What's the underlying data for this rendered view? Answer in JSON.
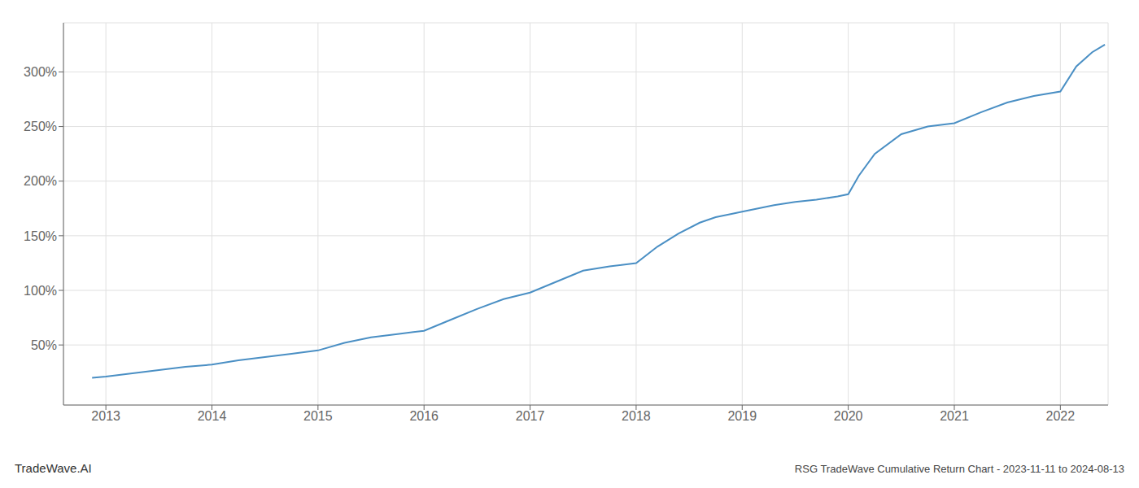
{
  "chart_data": {
    "type": "line",
    "title": "RSG TradeWave Cumulative Return Chart - 2023-11-11 to 2024-08-13",
    "annotations": [
      "TradeWave.AI"
    ],
    "x": [
      2012.87,
      2013.0,
      2013.25,
      2013.5,
      2013.75,
      2014.0,
      2014.25,
      2014.5,
      2014.75,
      2015.0,
      2015.25,
      2015.5,
      2015.75,
      2016.0,
      2016.25,
      2016.5,
      2016.75,
      2017.0,
      2017.25,
      2017.5,
      2017.75,
      2018.0,
      2018.2,
      2018.4,
      2018.6,
      2018.75,
      2018.9,
      2019.0,
      2019.15,
      2019.3,
      2019.5,
      2019.7,
      2019.9,
      2020.0,
      2020.1,
      2020.25,
      2020.5,
      2020.75,
      2021.0,
      2021.25,
      2021.5,
      2021.75,
      2022.0,
      2022.15,
      2022.3,
      2022.42
    ],
    "values": [
      20,
      21,
      24,
      27,
      30,
      32,
      36,
      39,
      42,
      45,
      52,
      57,
      60,
      63,
      73,
      83,
      92,
      98,
      108,
      118,
      122,
      125,
      140,
      152,
      162,
      167,
      170,
      172,
      175,
      178,
      181,
      183,
      186,
      188,
      205,
      225,
      243,
      250,
      253,
      263,
      272,
      278,
      282,
      305,
      318,
      325
    ],
    "color": "#4a8fc4",
    "xlim": [
      2012.6,
      2022.45
    ],
    "ylim": [
      -5,
      345
    ],
    "xticks": [
      2013,
      2014,
      2015,
      2016,
      2017,
      2018,
      2019,
      2020,
      2021,
      2022
    ],
    "yticks": [
      {
        "value": 50,
        "label": "50%"
      },
      {
        "value": 100,
        "label": "100%"
      },
      {
        "value": 150,
        "label": "150%"
      },
      {
        "value": 200,
        "label": "200%"
      },
      {
        "value": 250,
        "label": "250%"
      },
      {
        "value": 300,
        "label": "300%"
      }
    ],
    "grid": true
  }
}
